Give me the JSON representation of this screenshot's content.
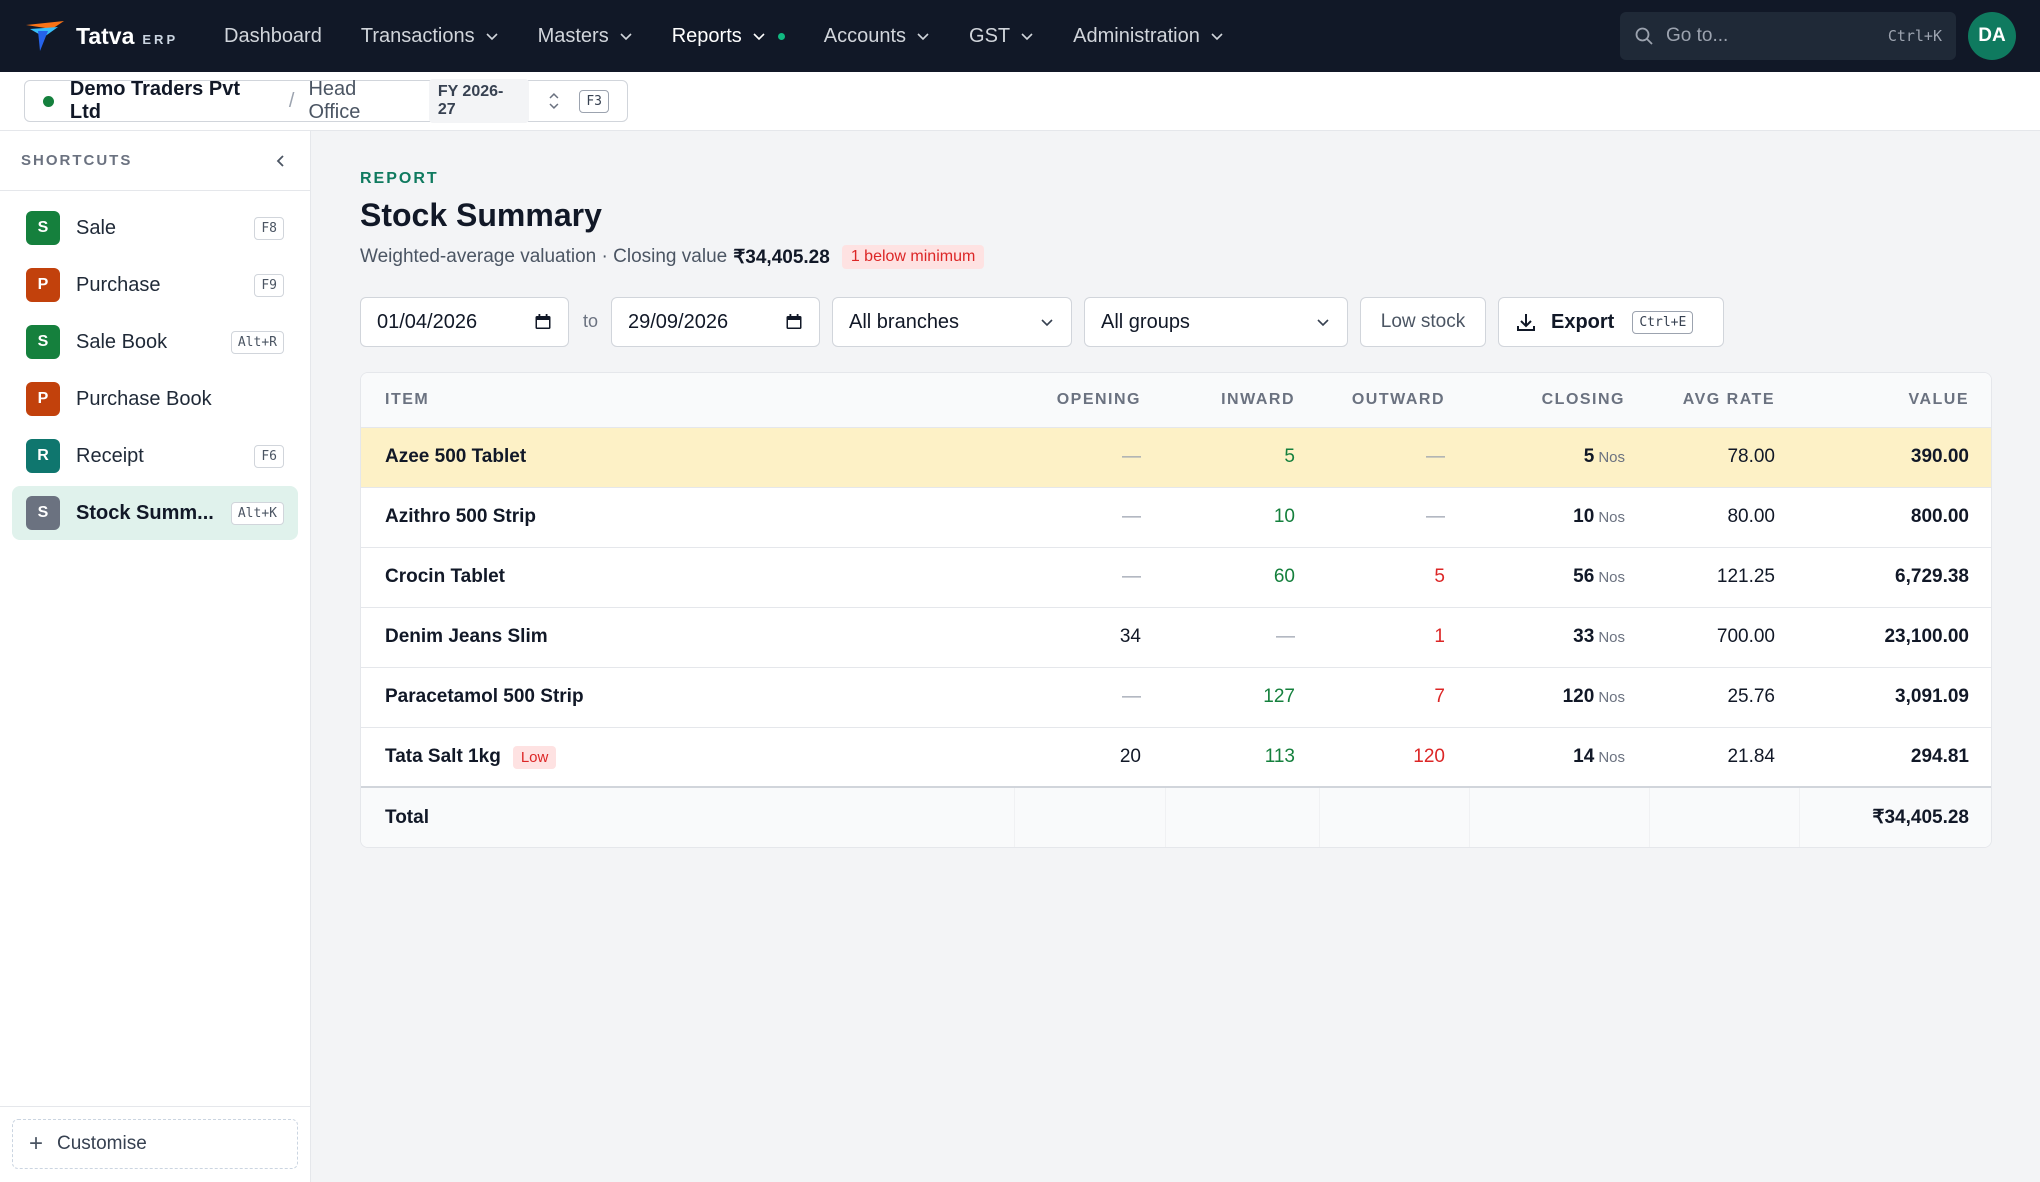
{
  "app": {
    "brand_name": "Tatva",
    "brand_sub": "ERP",
    "nav": [
      {
        "label": "Dashboard"
      },
      {
        "label": "Transactions"
      },
      {
        "label": "Masters"
      },
      {
        "label": "Reports"
      },
      {
        "label": "Accounts"
      },
      {
        "label": "GST"
      },
      {
        "label": "Administration"
      }
    ],
    "goto_placeholder": "Go to...",
    "goto_shortcut": "Ctrl+K",
    "avatar_initials": "DA"
  },
  "context": {
    "company": "Demo Traders Pvt Ltd",
    "separator": "/",
    "branch": "Head Office",
    "fy": "FY 2026-27",
    "shortcut": "F3"
  },
  "sidebar": {
    "title": "SHORTCUTS",
    "items": [
      {
        "letter": "S",
        "label": "Sale",
        "kbd": "F8",
        "color": "#15803d"
      },
      {
        "letter": "P",
        "label": "Purchase",
        "kbd": "F9",
        "color": "#c2410c"
      },
      {
        "letter": "S",
        "label": "Sale Book",
        "kbd": "Alt+R",
        "color": "#15803d"
      },
      {
        "letter": "P",
        "label": "Purchase Book",
        "kbd": "",
        "color": "#c2410c"
      },
      {
        "letter": "R",
        "label": "Receipt",
        "kbd": "F6",
        "color": "#0f766e"
      },
      {
        "letter": "S",
        "label": "Stock Summ...",
        "kbd": "Alt+K",
        "color": "#6b7280"
      }
    ],
    "customise": "Customise"
  },
  "report": {
    "eyebrow": "REPORT",
    "title": "Stock Summary",
    "subtitle": "Weighted-average valuation · Closing value",
    "closing_value": "₹34,405.28",
    "badge": "1 below minimum"
  },
  "filters": {
    "from_date": "01/04/2026",
    "to_label": "to",
    "to_date": "29/09/2026",
    "branch": "All branches",
    "group": "All groups",
    "low_stock": "Low stock",
    "export": "Export",
    "export_kbd": "Ctrl+E"
  },
  "table": {
    "columns": [
      "ITEM",
      "OPENING",
      "INWARD",
      "OUTWARD",
      "CLOSING",
      "AVG RATE",
      "VALUE"
    ],
    "rows": [
      {
        "item": "Azee 500 Tablet",
        "badge": "",
        "opening": "—",
        "inward": "5",
        "outward": "—",
        "closing": "5",
        "unit": "Nos",
        "avg_rate": "78.00",
        "value": "390.00"
      },
      {
        "item": "Azithro 500 Strip",
        "badge": "",
        "opening": "—",
        "inward": "10",
        "outward": "—",
        "closing": "10",
        "unit": "Nos",
        "avg_rate": "80.00",
        "value": "800.00"
      },
      {
        "item": "Crocin Tablet",
        "badge": "",
        "opening": "—",
        "inward": "60",
        "outward": "5",
        "closing": "56",
        "unit": "Nos",
        "avg_rate": "121.25",
        "value": "6,729.38"
      },
      {
        "item": "Denim Jeans Slim",
        "badge": "",
        "opening": "34",
        "inward": "—",
        "outward": "1",
        "closing": "33",
        "unit": "Nos",
        "avg_rate": "700.00",
        "value": "23,100.00"
      },
      {
        "item": "Paracetamol 500 Strip",
        "badge": "",
        "opening": "—",
        "inward": "127",
        "outward": "7",
        "closing": "120",
        "unit": "Nos",
        "avg_rate": "25.76",
        "value": "3,091.09"
      },
      {
        "item": "Tata Salt 1kg",
        "badge": "Low",
        "opening": "20",
        "inward": "113",
        "outward": "120",
        "closing": "14",
        "unit": "Nos",
        "avg_rate": "21.84",
        "value": "294.81"
      }
    ],
    "total_label": "Total",
    "total_value": "₹34,405.28"
  },
  "colors": {
    "nav_bg": "#111827",
    "accent": "#0f7a5f",
    "highlight_row": "#fdf1c6",
    "inward": "#15803d",
    "outward": "#dc2626"
  }
}
